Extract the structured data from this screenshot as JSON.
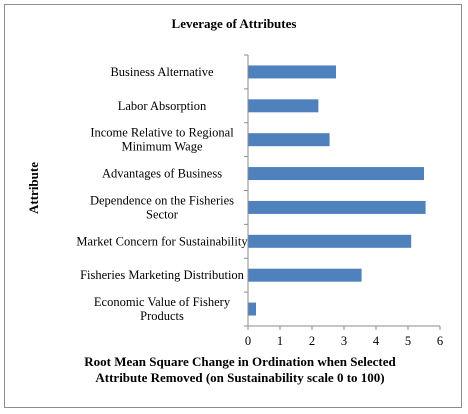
{
  "chart_data": {
    "type": "bar",
    "orientation": "horizontal",
    "title": "Leverage of Attributes",
    "xlabel": "Root Mean Square Change in Ordination when Selected Attribute Removed (on Sustainability scale 0 to 100)",
    "xlabel_lines": [
      "Root Mean Square Change in Ordination when Selected",
      "Attribute Removed (on Sustainability scale 0 to 100)"
    ],
    "ylabel": "Attribute",
    "categories": [
      "Business Alternative",
      "Labor Absorption",
      "Income Relative to Regional Minimum Wage",
      "Advantages of Business",
      "Dependence on the Fisheries Sector",
      "Market Concern for Sustainability",
      "Fisheries Marketing Distribution",
      "Economic Value of Fishery Products"
    ],
    "category_lines": [
      [
        "Business Alternative"
      ],
      [
        "Labor Absorption"
      ],
      [
        "Income Relative to Regional",
        "Minimum Wage"
      ],
      [
        "Advantages of Business"
      ],
      [
        "Dependence on the Fisheries",
        "Sector"
      ],
      [
        "Market Concern for Sustainability"
      ],
      [
        "Fisheries Marketing Distribution"
      ],
      [
        "Economic Value of Fishery",
        "Products"
      ]
    ],
    "values": [
      2.75,
      2.2,
      2.55,
      5.5,
      5.55,
      5.1,
      3.55,
      0.25
    ],
    "xlim": [
      0,
      6
    ],
    "xticks": [
      0,
      1,
      2,
      3,
      4,
      5,
      6
    ],
    "grid": false,
    "legend": "none",
    "bar_color": "#4f81bd"
  }
}
